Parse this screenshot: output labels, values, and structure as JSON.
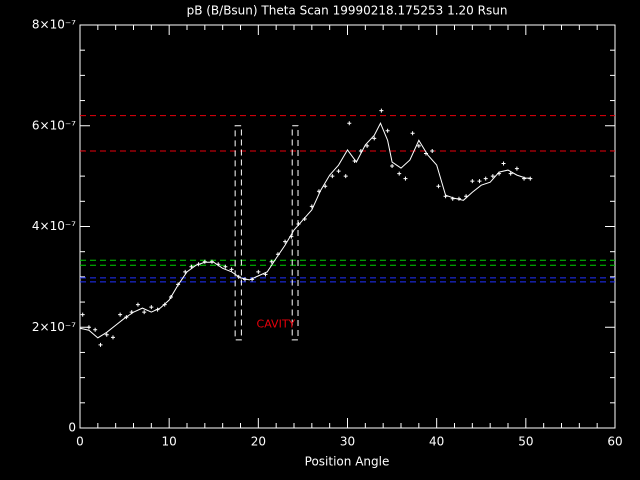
{
  "chart_data": {
    "type": "line",
    "title": "pB (B/Bsun) Theta Scan 19990218.175253 1.20 Rsun",
    "x_label": "Position Angle",
    "xlim": [
      0,
      60
    ],
    "xticks": [
      0,
      10,
      20,
      30,
      40,
      50,
      60
    ],
    "ylim": [
      0,
      8e-07
    ],
    "yticks": [
      0,
      {
        "value": 2e-07,
        "label": "2×10⁻⁷"
      },
      {
        "value": 4e-07,
        "label": "4×10⁻⁷"
      },
      {
        "value": 6e-07,
        "label": "6×10⁻⁷"
      },
      {
        "value": 8e-07,
        "label": "8×10⁻⁷"
      }
    ],
    "x_minor": 5,
    "y_minor": 4,
    "axis_color": "#ffffff",
    "background": "#000000",
    "series": [
      {
        "type": "scatter",
        "color": "#ffffff",
        "x": [
          0.3,
          1,
          1.7,
          2.3,
          3,
          3.7,
          4.5,
          5.2,
          5.8,
          6.5,
          7.2,
          8,
          8.7,
          9.5,
          10.2,
          11,
          11.8,
          12.5,
          13.3,
          14,
          14.8,
          15.5,
          16.3,
          17,
          17.8,
          18.5,
          19.3,
          20,
          20.8,
          21.5,
          22.2,
          23,
          23.7,
          24.5,
          25.2,
          26,
          26.8,
          27.5,
          28.3,
          29,
          29.8,
          30.2,
          30.8,
          31.5,
          32.2,
          33,
          33.8,
          34.5,
          35,
          35.8,
          36.5,
          37.3,
          38,
          38.8,
          39.5,
          40.2,
          41,
          41.8,
          42.5,
          43.3,
          44,
          44.8,
          45.5,
          46.3,
          47,
          47.5,
          48.3,
          49,
          49.8,
          50.5
        ],
        "values": [
          2.25e-07,
          2e-07,
          1.95e-07,
          1.65e-07,
          1.85e-07,
          1.8e-07,
          2.25e-07,
          2.2e-07,
          2.3e-07,
          2.45e-07,
          2.3e-07,
          2.4e-07,
          2.35e-07,
          2.45e-07,
          2.6e-07,
          2.85e-07,
          3.1e-07,
          3.2e-07,
          3.25e-07,
          3.3e-07,
          3.3e-07,
          3.25e-07,
          3.2e-07,
          3.15e-07,
          3e-07,
          2.95e-07,
          2.95e-07,
          3.1e-07,
          3.05e-07,
          3.3e-07,
          3.45e-07,
          3.7e-07,
          3.8e-07,
          4.05e-07,
          4.15e-07,
          4.4e-07,
          4.7e-07,
          4.8e-07,
          5e-07,
          5.1e-07,
          5e-07,
          6.05e-07,
          5.3e-07,
          5.5e-07,
          5.6e-07,
          5.75e-07,
          6.3e-07,
          5.9e-07,
          5.2e-07,
          5.05e-07,
          4.95e-07,
          5.85e-07,
          5.6e-07,
          5.45e-07,
          5.5e-07,
          4.8e-07,
          4.6e-07,
          4.55e-07,
          4.55e-07,
          4.6e-07,
          4.9e-07,
          4.9e-07,
          4.95e-07,
          5e-07,
          5.05e-07,
          5.25e-07,
          5.05e-07,
          5.15e-07,
          4.95e-07,
          4.95e-07
        ]
      },
      {
        "type": "line",
        "color": "#ffffff",
        "x": [
          0,
          1,
          2,
          3,
          4,
          5,
          6,
          7,
          8,
          9,
          10,
          11,
          12,
          13,
          14,
          15,
          16,
          17,
          18,
          19,
          20,
          21,
          22,
          23,
          24,
          25,
          26,
          27,
          28,
          29,
          30,
          31,
          32,
          33,
          33.7,
          34.5,
          35,
          36,
          37,
          38,
          39,
          40,
          41,
          42,
          43,
          44,
          45,
          46,
          47,
          48,
          49,
          50,
          50.5
        ],
        "values": [
          1.98e-07,
          1.94e-07,
          1.79e-07,
          1.9e-07,
          2.04e-07,
          2.18e-07,
          2.3e-07,
          2.38e-07,
          2.3e-07,
          2.38e-07,
          2.54e-07,
          2.84e-07,
          3.1e-07,
          3.23e-07,
          3.29e-07,
          3.29e-07,
          3.17e-07,
          3.1e-07,
          2.98e-07,
          2.94e-07,
          3.02e-07,
          3.1e-07,
          3.37e-07,
          3.63e-07,
          3.93e-07,
          4.13e-07,
          4.33e-07,
          4.72e-07,
          5.02e-07,
          5.22e-07,
          5.52e-07,
          5.28e-07,
          5.62e-07,
          5.81e-07,
          6.05e-07,
          5.71e-07,
          5.28e-07,
          5.16e-07,
          5.32e-07,
          5.71e-07,
          5.42e-07,
          5.22e-07,
          4.62e-07,
          4.56e-07,
          4.52e-07,
          4.68e-07,
          4.82e-07,
          4.88e-07,
          5.08e-07,
          5.12e-07,
          5.02e-07,
          4.96e-07,
          4.96e-07
        ]
      }
    ],
    "hlines": [
      {
        "value": 6.2e-07,
        "color": "#e8000b"
      },
      {
        "value": 5.5e-07,
        "color": "#e8000b"
      },
      {
        "value": 3.33e-07,
        "color": "#00d000"
      },
      {
        "value": 3.23e-07,
        "color": "#00d000"
      },
      {
        "value": 2.98e-07,
        "color": "#2030ff"
      },
      {
        "value": 2.9e-07,
        "color": "#2030ff"
      }
    ],
    "boxes": [
      {
        "xlim": [
          17.4,
          18.1
        ],
        "ylim": [
          1.75e-07,
          6e-07
        ],
        "color": "#ffffff"
      },
      {
        "xlim": [
          23.8,
          24.45
        ],
        "ylim": [
          1.75e-07,
          6e-07
        ],
        "color": "#ffffff"
      }
    ],
    "annotation": {
      "text": "CAVITY",
      "x": 19.8,
      "y": 2.05e-07,
      "color": "#e8000b"
    }
  }
}
